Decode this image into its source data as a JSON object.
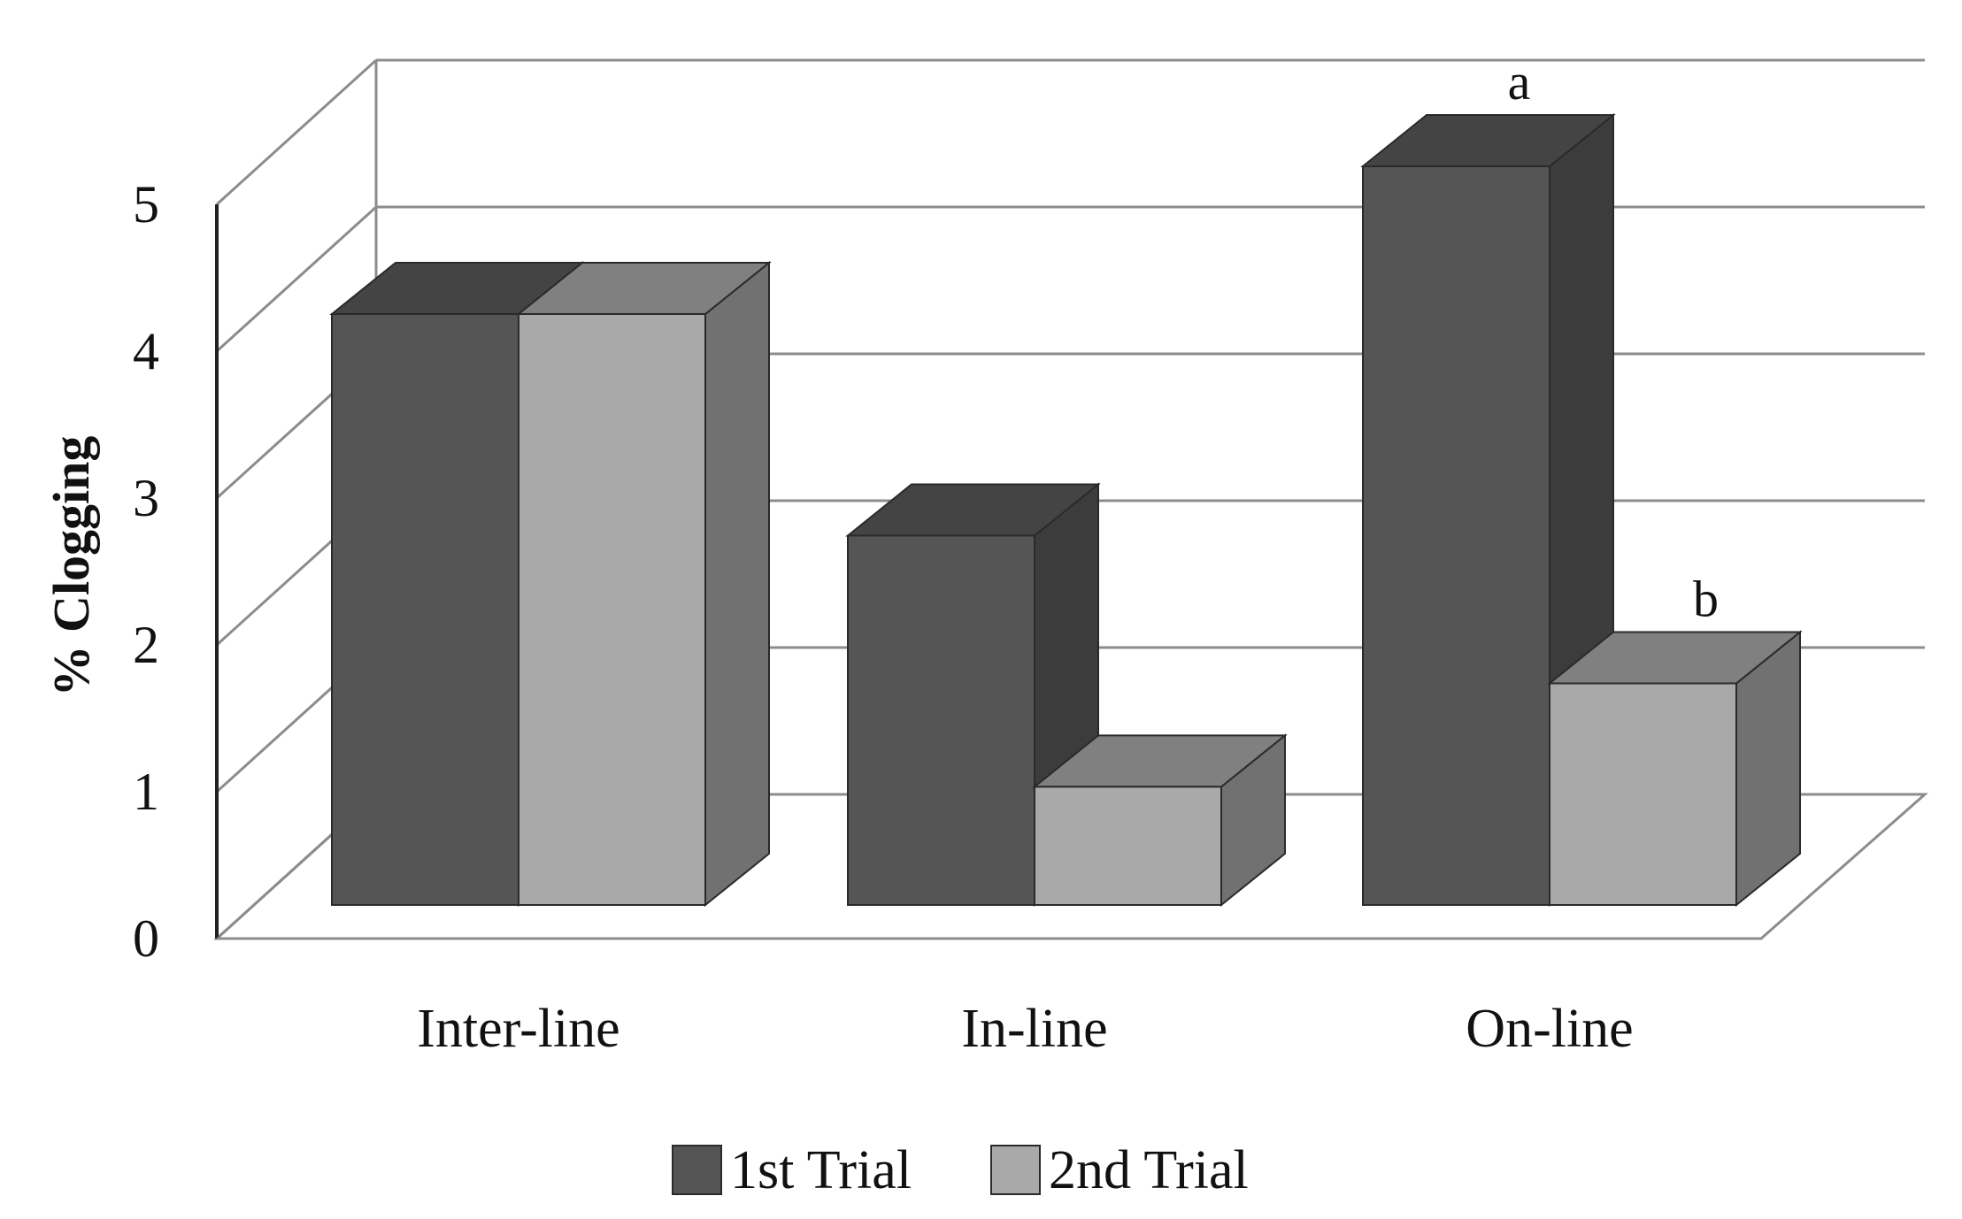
{
  "chart_data": {
    "type": "bar",
    "style": "3d-clustered-column",
    "categories": [
      "Inter-line",
      "In-line",
      "On-line"
    ],
    "series": [
      {
        "name": "1st Trial",
        "values": [
          4.0,
          2.5,
          5.0
        ],
        "color": "#555555"
      },
      {
        "name": "2nd Trial",
        "values": [
          4.0,
          0.8,
          1.5
        ],
        "color": "#a9a9a9"
      }
    ],
    "ylabel": "% Clogging",
    "xlabel": "",
    "ylim": [
      0,
      5
    ],
    "yticks": [
      "0",
      "1",
      "2",
      "3",
      "4",
      "5"
    ],
    "grid": true,
    "legend_position": "bottom",
    "annotations": [
      {
        "text": "a",
        "category": "On-line",
        "series": "1st Trial"
      },
      {
        "text": "b",
        "category": "On-line",
        "series": "2nd Trial"
      }
    ]
  }
}
